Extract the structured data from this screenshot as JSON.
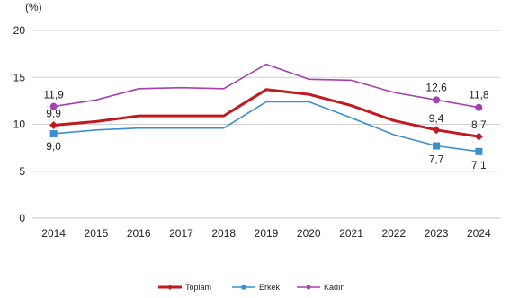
{
  "chart_data": {
    "type": "line",
    "title": "",
    "xlabel": "",
    "ylabel": "",
    "unit_label": "(%)",
    "ylim": [
      0,
      20
    ],
    "yticks": [
      0,
      5,
      10,
      15,
      20
    ],
    "grid": "horizontal",
    "legend_position": "bottom",
    "categories": [
      "2014",
      "2015",
      "2016",
      "2017",
      "2018",
      "2019",
      "2020",
      "2021",
      "2022",
      "2023",
      "2024"
    ],
    "series": [
      {
        "name": "Toplam",
        "color": "#c0191f",
        "marker": "diamond",
        "values": [
          9.9,
          10.3,
          10.9,
          10.9,
          10.9,
          13.7,
          13.2,
          12.0,
          10.4,
          9.4,
          8.7
        ]
      },
      {
        "name": "Erkek",
        "color": "#3a8fd0",
        "marker": "square",
        "values": [
          9.0,
          9.4,
          9.6,
          9.6,
          9.6,
          12.4,
          12.4,
          10.7,
          8.9,
          7.7,
          7.1
        ]
      },
      {
        "name": "Kadın",
        "color": "#a640b0",
        "marker": "circle",
        "values": [
          11.9,
          12.6,
          13.8,
          13.9,
          13.8,
          16.4,
          14.8,
          14.7,
          13.4,
          12.6,
          11.8
        ]
      }
    ],
    "data_labels": [
      {
        "series": "Kadın",
        "index": 0,
        "text": "11,9"
      },
      {
        "series": "Toplam",
        "index": 0,
        "text": "9,9"
      },
      {
        "series": "Erkek",
        "index": 0,
        "text": "9,0"
      },
      {
        "series": "Kadın",
        "index": 9,
        "text": "12,6"
      },
      {
        "series": "Toplam",
        "index": 9,
        "text": "9,4"
      },
      {
        "series": "Erkek",
        "index": 9,
        "text": "7,7"
      },
      {
        "series": "Kadın",
        "index": 10,
        "text": "11,8"
      },
      {
        "series": "Toplam",
        "index": 10,
        "text": "8,7"
      },
      {
        "series": "Erkek",
        "index": 10,
        "text": "7,1"
      }
    ]
  }
}
